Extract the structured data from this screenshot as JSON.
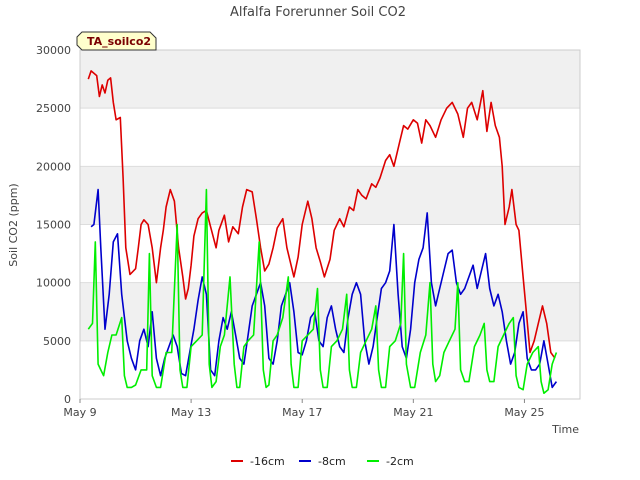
{
  "chart_data": {
    "type": "line",
    "title": "Alfalfa Forerunner Soil CO2",
    "xlabel": "Time",
    "ylabel": "Soil CO2 (ppm)",
    "badge": "TA_soilco2",
    "ylim": [
      0,
      30000
    ],
    "xlim": [
      9,
      27
    ],
    "yticks": [
      0,
      5000,
      10000,
      15000,
      20000,
      25000,
      30000
    ],
    "xticks": [
      {
        "value": 9,
        "label": "May 9"
      },
      {
        "value": 13,
        "label": "May 13"
      },
      {
        "value": 17,
        "label": "May 17"
      },
      {
        "value": 21,
        "label": "May 21"
      },
      {
        "value": 25,
        "label": "May 25"
      }
    ],
    "legend_position": "bottom-center",
    "grid": "horizontal alternating bands",
    "series": [
      {
        "name": "-16cm",
        "color": "#dd0000",
        "x": [
          9.3,
          9.4,
          9.6,
          9.7,
          9.8,
          9.9,
          10.0,
          10.1,
          10.2,
          10.3,
          10.45,
          10.55,
          10.65,
          10.8,
          11.0,
          11.1,
          11.2,
          11.3,
          11.45,
          11.6,
          11.75,
          11.9,
          12.0,
          12.1,
          12.25,
          12.4,
          12.55,
          12.7,
          12.8,
          12.9,
          13.0,
          13.1,
          13.25,
          13.4,
          13.55,
          13.7,
          13.9,
          14.0,
          14.2,
          14.35,
          14.5,
          14.7,
          14.85,
          15.0,
          15.2,
          15.35,
          15.5,
          15.65,
          15.8,
          15.95,
          16.1,
          16.3,
          16.45,
          16.55,
          16.7,
          16.85,
          17.0,
          17.2,
          17.35,
          17.5,
          17.65,
          17.8,
          18.0,
          18.15,
          18.35,
          18.5,
          18.7,
          18.85,
          19.0,
          19.15,
          19.3,
          19.5,
          19.65,
          19.8,
          20.0,
          20.15,
          20.3,
          20.5,
          20.65,
          20.8,
          21.0,
          21.15,
          21.3,
          21.45,
          21.6,
          21.8,
          22.0,
          22.2,
          22.4,
          22.6,
          22.8,
          22.95,
          23.1,
          23.3,
          23.5,
          23.65,
          23.8,
          23.95,
          24.1,
          24.2,
          24.3,
          24.45,
          24.55,
          24.7,
          24.8,
          24.95,
          25.05,
          25.2,
          25.35,
          25.5,
          25.65,
          25.8,
          25.95,
          26.1
        ],
        "values": [
          27500,
          28200,
          27800,
          26000,
          27000,
          26300,
          27400,
          27600,
          25500,
          24000,
          24200,
          19000,
          13000,
          10700,
          11200,
          13000,
          15000,
          15400,
          15000,
          13000,
          10000,
          13000,
          14500,
          16500,
          18000,
          17000,
          13000,
          10500,
          8600,
          9500,
          11500,
          14000,
          15500,
          16000,
          16200,
          14800,
          13000,
          14500,
          15800,
          13500,
          14800,
          14200,
          16500,
          18000,
          17800,
          15500,
          13000,
          11000,
          11600,
          13000,
          14700,
          15500,
          13000,
          12000,
          10500,
          12200,
          15000,
          17000,
          15500,
          13000,
          11800,
          10500,
          12000,
          14500,
          15500,
          14800,
          16500,
          16200,
          18000,
          17500,
          17200,
          18500,
          18200,
          19000,
          20500,
          21000,
          20000,
          22000,
          23500,
          23200,
          24000,
          23700,
          22000,
          24000,
          23500,
          22500,
          24000,
          25000,
          25500,
          24500,
          22500,
          25000,
          25500,
          24000,
          26500,
          23000,
          25500,
          23500,
          22500,
          20000,
          15000,
          16500,
          18000,
          15000,
          14500,
          10500,
          8000,
          4000,
          5000,
          6500,
          8000,
          6500,
          4000,
          3500
        ]
      },
      {
        "name": "-8cm",
        "color": "#0000cc",
        "x": [
          9.4,
          9.5,
          9.65,
          9.75,
          9.9,
          10.05,
          10.2,
          10.35,
          10.5,
          10.7,
          10.85,
          11.0,
          11.15,
          11.3,
          11.45,
          11.6,
          11.75,
          11.9,
          12.05,
          12.2,
          12.35,
          12.5,
          12.65,
          12.8,
          12.95,
          13.1,
          13.25,
          13.4,
          13.55,
          13.7,
          13.85,
          14.0,
          14.15,
          14.3,
          14.45,
          14.6,
          14.75,
          14.9,
          15.05,
          15.2,
          15.35,
          15.5,
          15.65,
          15.8,
          15.95,
          16.1,
          16.25,
          16.4,
          16.55,
          16.7,
          16.85,
          17.0,
          17.15,
          17.3,
          17.45,
          17.6,
          17.75,
          17.9,
          18.05,
          18.2,
          18.35,
          18.5,
          18.65,
          18.8,
          18.95,
          19.1,
          19.25,
          19.4,
          19.55,
          19.7,
          19.85,
          20.0,
          20.15,
          20.3,
          20.45,
          20.6,
          20.75,
          20.9,
          21.05,
          21.2,
          21.35,
          21.5,
          21.65,
          21.8,
          21.95,
          22.1,
          22.25,
          22.4,
          22.55,
          22.7,
          22.85,
          23.0,
          23.15,
          23.3,
          23.45,
          23.6,
          23.75,
          23.9,
          24.05,
          24.2,
          24.35,
          24.5,
          24.65,
          24.8,
          24.95,
          25.1,
          25.25,
          25.4,
          25.55,
          25.7,
          25.85,
          26.0,
          26.15
        ],
        "values": [
          14800,
          15000,
          18000,
          13000,
          6000,
          9000,
          13500,
          14200,
          9000,
          5000,
          3500,
          2500,
          5000,
          6000,
          4500,
          7500,
          3500,
          2000,
          3500,
          4500,
          5500,
          4500,
          2200,
          2000,
          4000,
          6000,
          8500,
          10500,
          9000,
          2500,
          2000,
          5000,
          7000,
          6000,
          7500,
          5500,
          3500,
          3000,
          5500,
          8000,
          9000,
          10000,
          8000,
          3500,
          3000,
          5000,
          8000,
          9000,
          10000,
          7500,
          4000,
          3800,
          5000,
          7000,
          7500,
          5000,
          4500,
          7000,
          8000,
          6000,
          4500,
          4000,
          7000,
          9000,
          10000,
          9000,
          5000,
          3000,
          4500,
          7000,
          9500,
          10000,
          11000,
          15000,
          9000,
          4500,
          3500,
          6000,
          10000,
          12000,
          13000,
          16000,
          10000,
          8000,
          9500,
          11000,
          12500,
          12800,
          10000,
          9000,
          9500,
          10500,
          11500,
          9500,
          11000,
          12500,
          9500,
          8000,
          9000,
          7500,
          5000,
          3000,
          4000,
          6500,
          7500,
          3500,
          2500,
          2500,
          3000,
          5000,
          3000,
          1000,
          1500
        ]
      },
      {
        "name": "-2cm",
        "color": "#00ee00",
        "x": [
          9.3,
          9.45,
          9.55,
          9.65,
          9.75,
          9.85,
          10.0,
          10.15,
          10.3,
          10.5,
          10.6,
          10.7,
          10.85,
          11.0,
          11.2,
          11.4,
          11.5,
          11.6,
          11.75,
          11.9,
          12.1,
          12.3,
          12.5,
          12.6,
          12.7,
          12.85,
          13.0,
          13.2,
          13.4,
          13.55,
          13.65,
          13.75,
          13.9,
          14.05,
          14.2,
          14.4,
          14.55,
          14.65,
          14.75,
          14.9,
          15.05,
          15.25,
          15.45,
          15.6,
          15.7,
          15.8,
          15.95,
          16.1,
          16.3,
          16.5,
          16.6,
          16.7,
          16.85,
          17.0,
          17.2,
          17.4,
          17.55,
          17.65,
          17.75,
          17.9,
          18.05,
          18.25,
          18.45,
          18.6,
          18.7,
          18.8,
          18.95,
          19.1,
          19.3,
          19.5,
          19.65,
          19.75,
          19.85,
          20.0,
          20.15,
          20.35,
          20.55,
          20.65,
          20.75,
          20.9,
          21.05,
          21.25,
          21.45,
          21.6,
          21.7,
          21.8,
          21.95,
          22.1,
          22.3,
          22.5,
          22.6,
          22.7,
          22.85,
          23.0,
          23.2,
          23.4,
          23.55,
          23.65,
          23.75,
          23.9,
          24.05,
          24.25,
          24.45,
          24.6,
          24.7,
          24.8,
          24.95,
          25.1,
          25.3,
          25.5,
          25.6,
          25.7,
          25.85,
          26.0,
          26.15
        ],
        "values": [
          6000,
          6500,
          13500,
          3000,
          2500,
          2000,
          4000,
          5500,
          5500,
          7000,
          2000,
          1000,
          1000,
          1200,
          2500,
          2500,
          12500,
          2000,
          1000,
          1000,
          4000,
          4000,
          15000,
          2500,
          1000,
          1000,
          4500,
          5000,
          5500,
          18000,
          3000,
          1000,
          1500,
          4500,
          5500,
          10500,
          3000,
          1000,
          1000,
          4500,
          5000,
          5500,
          13500,
          2500,
          1000,
          1200,
          5000,
          5500,
          7000,
          10500,
          3000,
          1000,
          1000,
          5000,
          5500,
          6000,
          9500,
          2500,
          1000,
          1000,
          4500,
          5000,
          6000,
          9000,
          2500,
          1000,
          1000,
          4000,
          5000,
          6000,
          8000,
          2500,
          1000,
          1000,
          4500,
          5000,
          6500,
          12500,
          3000,
          1000,
          1000,
          4000,
          5500,
          10000,
          3000,
          1500,
          2000,
          4000,
          5000,
          6000,
          10000,
          2500,
          1500,
          1500,
          4500,
          5500,
          6500,
          2500,
          1500,
          1500,
          4500,
          5500,
          6500,
          7000,
          2000,
          1000,
          800,
          3000,
          4000,
          4500,
          1500,
          500,
          800,
          3000,
          4000
        ]
      }
    ]
  }
}
